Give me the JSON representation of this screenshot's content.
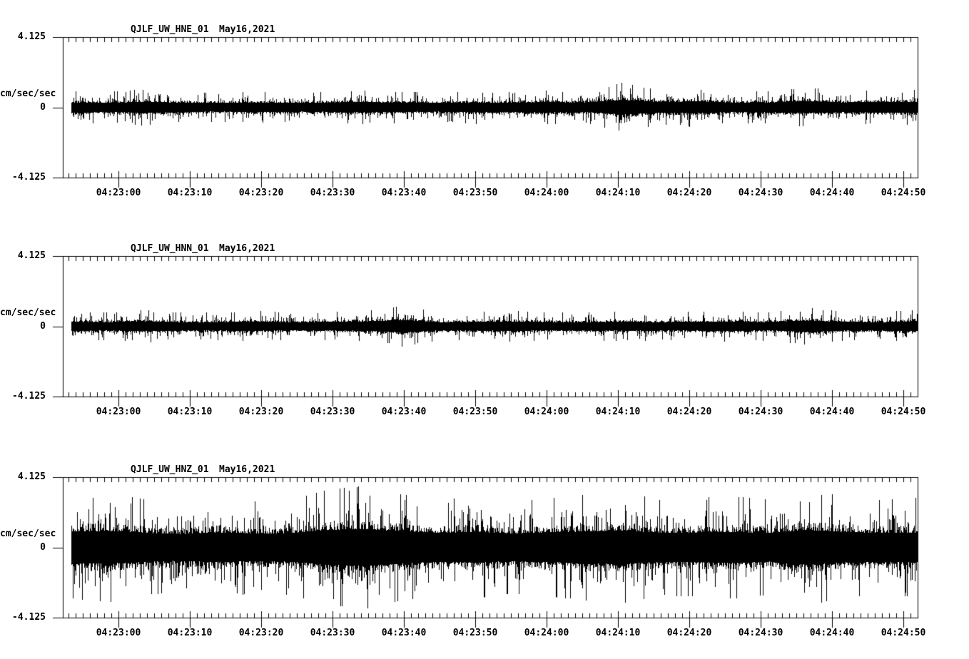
{
  "page": {
    "background": "#ffffff",
    "foreground": "#000000"
  },
  "chart_data": [
    {
      "type": "line",
      "subtype": "seismogram",
      "title": "QJLF_UW_HNE_01",
      "date_label": "May16,2021",
      "station": "QJLF",
      "network": "UW",
      "channel": "HNE",
      "location": "01",
      "ylabel": "cm/sec/sec",
      "ylim": [
        -4.125,
        4.125
      ],
      "ytick_labels": {
        "max": "4.125",
        "zero": "0",
        "min": "-4.125"
      },
      "xtick_labels": [
        "04:23:00",
        "04:23:10",
        "04:23:20",
        "04:23:30",
        "04:23:40",
        "04:23:50",
        "04:24:00",
        "04:24:10",
        "04:24:20",
        "04:24:30",
        "04:24:40",
        "04:24:50"
      ],
      "x_major_interval_sec": 10,
      "x_minor_interval_sec": 1,
      "grid": false,
      "line_color": "#000000",
      "amplitude_envelope_peak": [
        0.95,
        0.9,
        1.05,
        0.9,
        0.85,
        0.9,
        0.85,
        0.9,
        1.0,
        0.9,
        0.85,
        0.95,
        0.9,
        1.0,
        0.9,
        1.45,
        1.0,
        1.15,
        0.9,
        0.95,
        1.15,
        0.95,
        1.0,
        1.05
      ],
      "noise_core_fraction": 0.3,
      "seed": 101
    },
    {
      "type": "line",
      "subtype": "seismogram",
      "title": "QJLF_UW_HNN_01",
      "date_label": "May16,2021",
      "station": "QJLF",
      "network": "UW",
      "channel": "HNN",
      "location": "01",
      "ylabel": "cm/sec/sec",
      "ylim": [
        -4.125,
        4.125
      ],
      "ytick_labels": {
        "max": "4.125",
        "zero": "0",
        "min": "-4.125"
      },
      "xtick_labels": [
        "04:23:00",
        "04:23:10",
        "04:23:20",
        "04:23:30",
        "04:23:40",
        "04:23:50",
        "04:24:00",
        "04:24:10",
        "04:24:20",
        "04:24:30",
        "04:24:40",
        "04:24:50"
      ],
      "x_major_interval_sec": 10,
      "x_minor_interval_sec": 1,
      "grid": false,
      "line_color": "#000000",
      "amplitude_envelope_peak": [
        0.85,
        0.8,
        0.95,
        0.8,
        0.8,
        0.9,
        0.8,
        0.85,
        0.9,
        1.2,
        0.8,
        0.85,
        0.9,
        0.8,
        0.8,
        0.85,
        0.8,
        0.85,
        0.9,
        0.8,
        1.1,
        0.85,
        0.8,
        1.0
      ],
      "noise_core_fraction": 0.3,
      "seed": 202
    },
    {
      "type": "line",
      "subtype": "seismogram",
      "title": "QJLF_UW_HNZ_01",
      "date_label": "May16,2021",
      "station": "QJLF",
      "network": "UW",
      "channel": "HNZ",
      "location": "01",
      "ylabel": "cm/sec/sec",
      "ylim": [
        -4.125,
        4.125
      ],
      "ytick_labels": {
        "max": "4.125",
        "zero": "0",
        "min": "-4.125"
      },
      "xtick_labels": [
        "04:23:00",
        "04:23:10",
        "04:23:20",
        "04:23:30",
        "04:23:40",
        "04:23:50",
        "04:24:00",
        "04:24:10",
        "04:24:20",
        "04:24:30",
        "04:24:40",
        "04:24:50"
      ],
      "x_major_interval_sec": 10,
      "x_minor_interval_sec": 1,
      "grid": false,
      "line_color": "#000000",
      "amplitude_envelope_peak": [
        3.0,
        3.2,
        2.8,
        2.6,
        2.9,
        2.7,
        2.8,
        3.4,
        3.6,
        3.1,
        2.8,
        3.0,
        2.7,
        2.9,
        3.1,
        3.3,
        2.8,
        2.9,
        3.0,
        2.8,
        3.4,
        3.0,
        2.8,
        2.9
      ],
      "noise_core_fraction": 0.3,
      "seed": 303
    }
  ]
}
